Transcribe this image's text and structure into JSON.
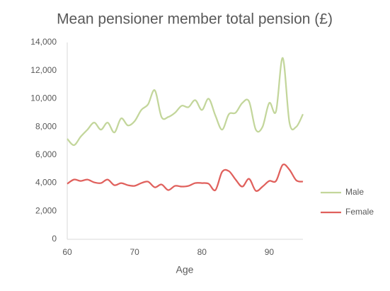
{
  "chart_data": {
    "type": "line",
    "title": "Mean pensioner member total pension (£)",
    "x_label": "Age",
    "x": [
      60,
      61,
      62,
      63,
      64,
      65,
      66,
      67,
      68,
      69,
      70,
      71,
      72,
      73,
      74,
      75,
      76,
      77,
      78,
      79,
      80,
      81,
      82,
      83,
      84,
      85,
      86,
      87,
      88,
      89,
      90,
      91,
      92,
      93,
      94,
      95
    ],
    "series": [
      {
        "name": "Male",
        "color": "#c3d69b",
        "values": [
          7150,
          6700,
          7300,
          7800,
          8300,
          7800,
          8300,
          7600,
          8600,
          8100,
          8400,
          9200,
          9600,
          10600,
          8700,
          8700,
          9000,
          9500,
          9400,
          9900,
          9200,
          10000,
          8800,
          7800,
          8900,
          9000,
          9700,
          9800,
          7800,
          8000,
          9700,
          9100,
          12900,
          8300,
          8000,
          8900
        ]
      },
      {
        "name": "Female",
        "color": "#e0605c",
        "values": [
          3950,
          4250,
          4150,
          4250,
          4050,
          4000,
          4250,
          3850,
          4000,
          3850,
          3800,
          4000,
          4100,
          3700,
          3900,
          3500,
          3800,
          3750,
          3800,
          4000,
          4000,
          3950,
          3500,
          4800,
          4850,
          4250,
          3750,
          4300,
          3450,
          3750,
          4150,
          4150,
          5300,
          4950,
          4200,
          4100
        ]
      }
    ],
    "xlim": [
      60,
      95
    ],
    "xticks": [
      60,
      70,
      80,
      90
    ],
    "ylim": [
      0,
      14000
    ],
    "yticks": [
      0,
      {
        "value": 2000,
        "label": "2,000"
      },
      {
        "value": 4000,
        "label": "4,000"
      },
      {
        "value": 6000,
        "label": "6,000"
      },
      {
        "value": 8000,
        "label": "8,000"
      },
      {
        "value": 10000,
        "label": "10,000"
      },
      {
        "value": 12000,
        "label": "12,000"
      },
      {
        "value": 14000,
        "label": "14,000"
      }
    ],
    "grid": false,
    "smooth": true,
    "legend": "right"
  }
}
